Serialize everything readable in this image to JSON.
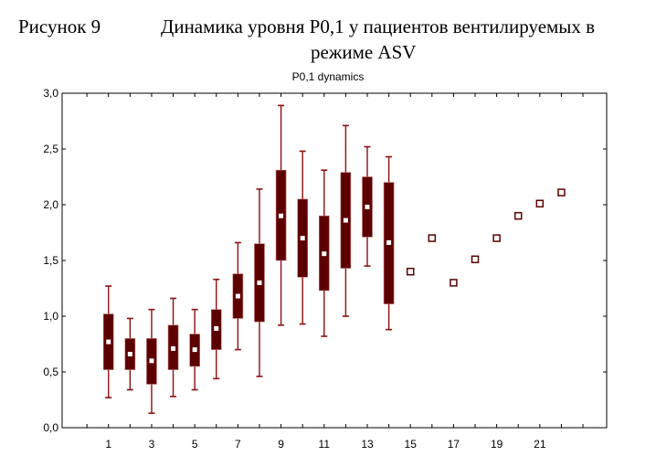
{
  "header": {
    "figure_label": "Рисунок 9",
    "title_line1": "Динамика уровня P0,1 у пациентов  вентилируемых в",
    "title_line2": "режиме ASV"
  },
  "chart_data": {
    "type": "box",
    "title": "P0,1 dynamics",
    "xlabel": "",
    "ylabel": "",
    "ylim": [
      0,
      3
    ],
    "xlim": [
      -1.15,
      24.1
    ],
    "yticks": [
      "0,0",
      "0,5",
      "1,0",
      "1,5",
      "2,0",
      "2,5",
      "3,0"
    ],
    "ytick_values": [
      0,
      0.5,
      1,
      1.5,
      2,
      2.5,
      3
    ],
    "xticks": [
      "1",
      "3",
      "5",
      "7",
      "9",
      "11",
      "13",
      "15",
      "17",
      "19",
      "21"
    ],
    "xtick_values": [
      1,
      3,
      5,
      7,
      9,
      11,
      13,
      15,
      17,
      19,
      21
    ],
    "minor_xticks": [
      0,
      1,
      2,
      3,
      4,
      5,
      6,
      7,
      8,
      9,
      10,
      11,
      12,
      13,
      14,
      15,
      16,
      17,
      18,
      19,
      20,
      21,
      22,
      23
    ],
    "grid": false,
    "box_color": "#5c0000",
    "whisker_color": "#8b1010",
    "boxes": [
      {
        "x": 1,
        "whisker_low": 0.27,
        "q1": 0.52,
        "median": 0.77,
        "q3": 1.02,
        "whisker_high": 1.27
      },
      {
        "x": 2,
        "whisker_low": 0.34,
        "q1": 0.52,
        "median": 0.66,
        "q3": 0.8,
        "whisker_high": 0.98
      },
      {
        "x": 3,
        "whisker_low": 0.13,
        "q1": 0.39,
        "median": 0.6,
        "q3": 0.8,
        "whisker_high": 1.06
      },
      {
        "x": 4,
        "whisker_low": 0.28,
        "q1": 0.52,
        "median": 0.71,
        "q3": 0.92,
        "whisker_high": 1.16
      },
      {
        "x": 5,
        "whisker_low": 0.34,
        "q1": 0.55,
        "median": 0.7,
        "q3": 0.84,
        "whisker_high": 1.06
      },
      {
        "x": 6,
        "whisker_low": 0.44,
        "q1": 0.7,
        "median": 0.89,
        "q3": 1.06,
        "whisker_high": 1.33
      },
      {
        "x": 7,
        "whisker_low": 0.7,
        "q1": 0.98,
        "median": 1.18,
        "q3": 1.38,
        "whisker_high": 1.66
      },
      {
        "x": 8,
        "whisker_low": 0.46,
        "q1": 0.95,
        "median": 1.3,
        "q3": 1.65,
        "whisker_high": 2.14
      },
      {
        "x": 9,
        "whisker_low": 0.92,
        "q1": 1.5,
        "median": 1.9,
        "q3": 2.31,
        "whisker_high": 2.89
      },
      {
        "x": 10,
        "whisker_low": 0.93,
        "q1": 1.35,
        "median": 1.7,
        "q3": 2.05,
        "whisker_high": 2.48
      },
      {
        "x": 11,
        "whisker_low": 0.82,
        "q1": 1.23,
        "median": 1.56,
        "q3": 1.9,
        "whisker_high": 2.31
      },
      {
        "x": 12,
        "whisker_low": 1.0,
        "q1": 1.43,
        "median": 1.86,
        "q3": 2.29,
        "whisker_high": 2.71
      },
      {
        "x": 13,
        "whisker_low": 1.45,
        "q1": 1.71,
        "median": 1.98,
        "q3": 2.25,
        "whisker_high": 2.52
      },
      {
        "x": 14,
        "whisker_low": 0.88,
        "q1": 1.11,
        "median": 1.66,
        "q3": 2.2,
        "whisker_high": 2.43
      }
    ],
    "points": [
      {
        "x": 15,
        "y": 1.4
      },
      {
        "x": 16,
        "y": 1.7
      },
      {
        "x": 17,
        "y": 1.3
      },
      {
        "x": 18,
        "y": 1.51
      },
      {
        "x": 19,
        "y": 1.7
      },
      {
        "x": 20,
        "y": 1.9
      },
      {
        "x": 21,
        "y": 2.01
      },
      {
        "x": 22,
        "y": 2.11
      }
    ]
  }
}
